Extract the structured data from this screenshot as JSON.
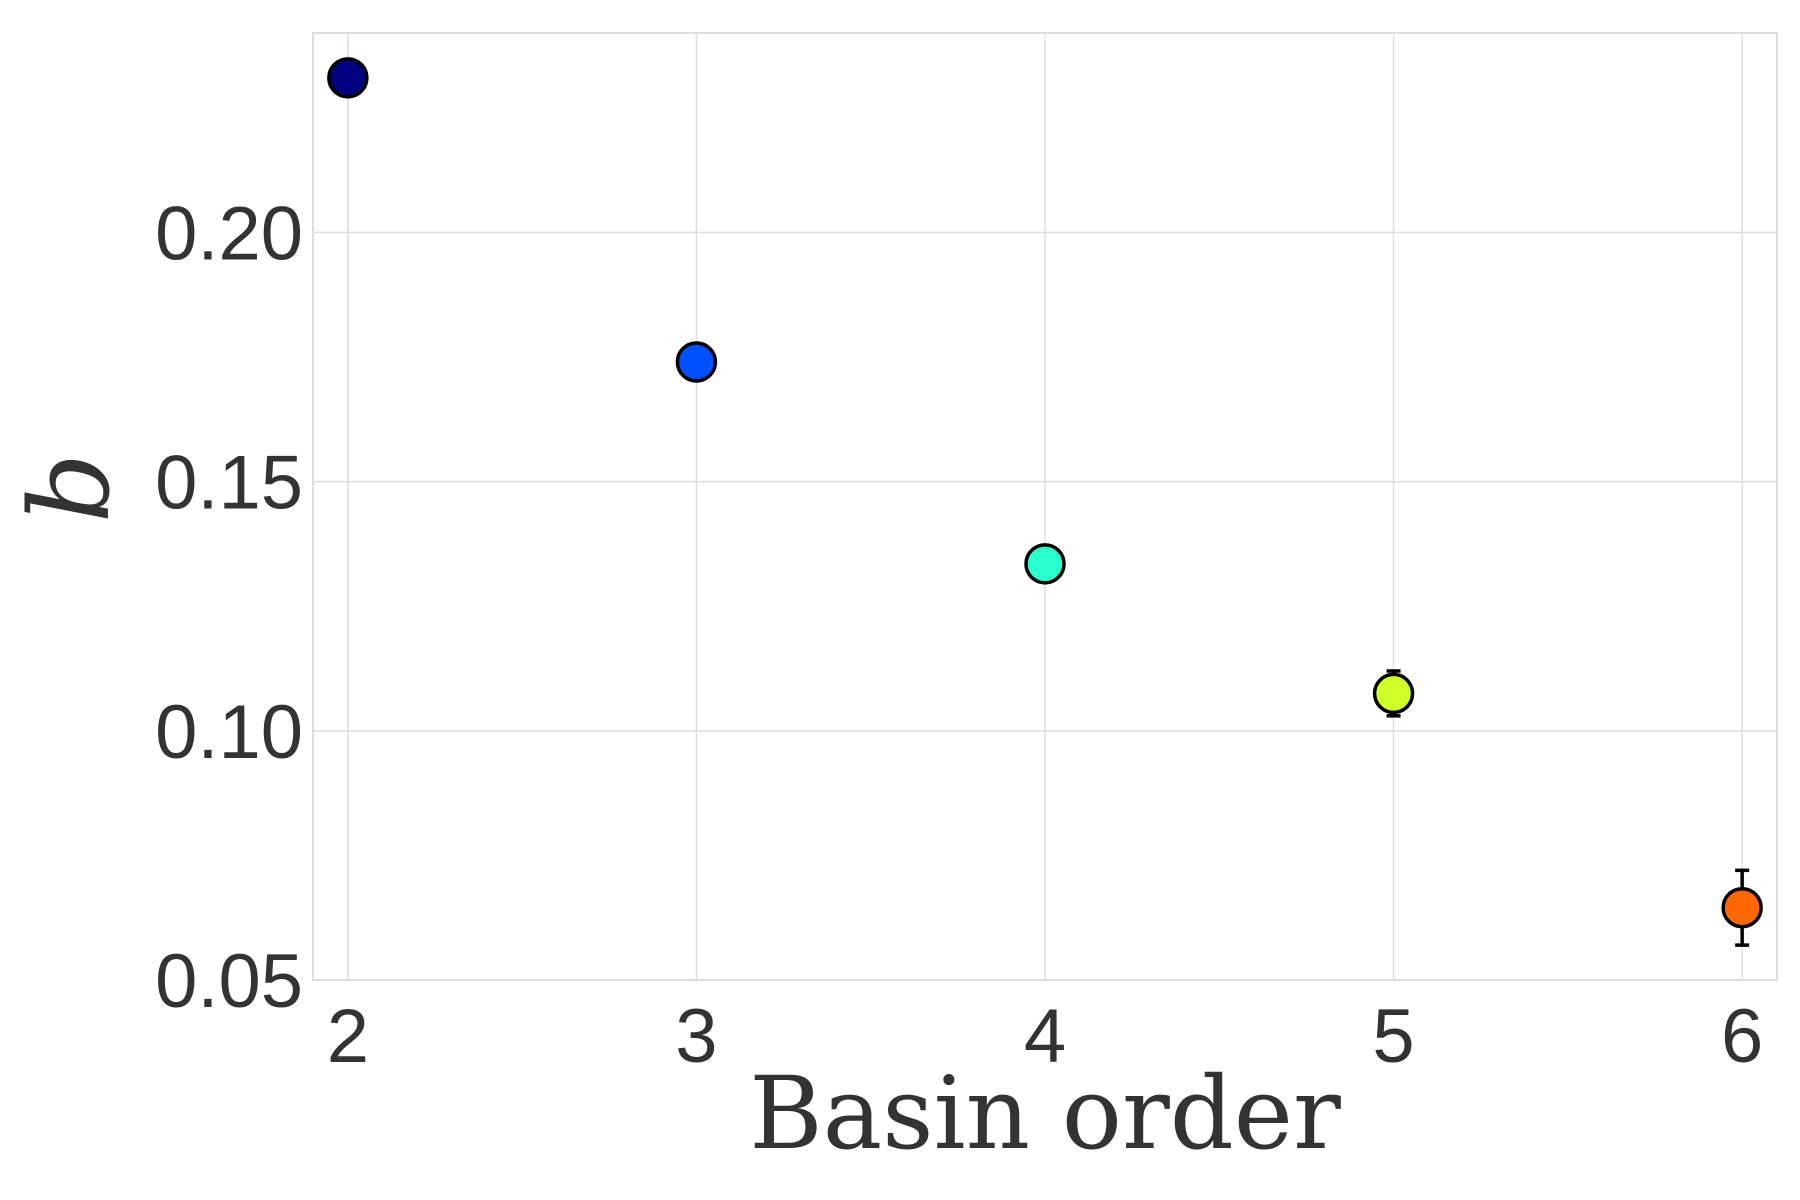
{
  "chart_data": {
    "type": "scatter",
    "title": "",
    "xlabel": "Basin order",
    "ylabel": "b",
    "xlim": [
      1.9,
      6.1
    ],
    "ylim": [
      0.05,
      0.24
    ],
    "grid": true,
    "x_ticks": [
      "2",
      "3",
      "4",
      "5",
      "6"
    ],
    "y_ticks": [
      "0.05",
      "0.10",
      "0.15",
      "0.20"
    ],
    "points": [
      {
        "x": 2,
        "y": 0.231,
        "err": 0.0008,
        "color": "#000080"
      },
      {
        "x": 3,
        "y": 0.174,
        "err": 0.0008,
        "color": "#0050ff"
      },
      {
        "x": 4,
        "y": 0.1335,
        "err": 0.0012,
        "color": "#29ffce"
      },
      {
        "x": 5,
        "y": 0.1075,
        "err": 0.0045,
        "color": "#ceff29"
      },
      {
        "x": 6,
        "y": 0.0645,
        "err": 0.0075,
        "color": "#ff6800"
      }
    ]
  }
}
